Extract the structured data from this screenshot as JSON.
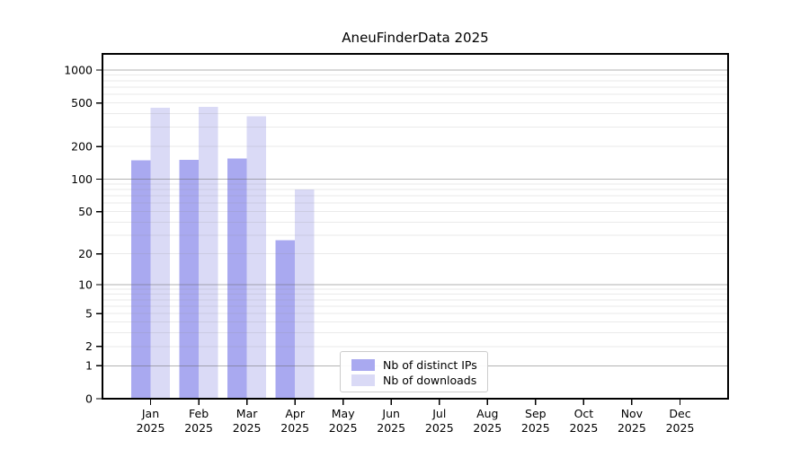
{
  "chart_data": {
    "type": "bar",
    "title": "AneuFinderData 2025",
    "categories": [
      "Jan 2025",
      "Feb 2025",
      "Mar 2025",
      "Apr 2025",
      "May 2025",
      "Jun 2025",
      "Jul 2025",
      "Aug 2025",
      "Sep 2025",
      "Oct 2025",
      "Nov 2025",
      "Dec 2025"
    ],
    "series": [
      {
        "name": "Nb of distinct IPs",
        "color": "#a9a9f0",
        "values": [
          149,
          150,
          155,
          27,
          0,
          0,
          0,
          0,
          0,
          0,
          0,
          0
        ]
      },
      {
        "name": "Nb of downloads",
        "color": "#dadaf6",
        "values": [
          450,
          462,
          376,
          80,
          0,
          0,
          0,
          0,
          0,
          0,
          0,
          0
        ]
      }
    ],
    "yscale": "log1p",
    "yticks": [
      0,
      1,
      2,
      5,
      10,
      20,
      50,
      100,
      200,
      500,
      1000
    ],
    "ylim": [
      0,
      1400
    ],
    "xlim_units": [
      -1,
      12
    ],
    "grid": true,
    "legend_position": "lower center",
    "colors": {
      "axis": "#000000",
      "minor_grid": "#e9e9e9",
      "major_grid": "#b5b5b5",
      "background": "#ffffff",
      "text": "#000000"
    }
  }
}
